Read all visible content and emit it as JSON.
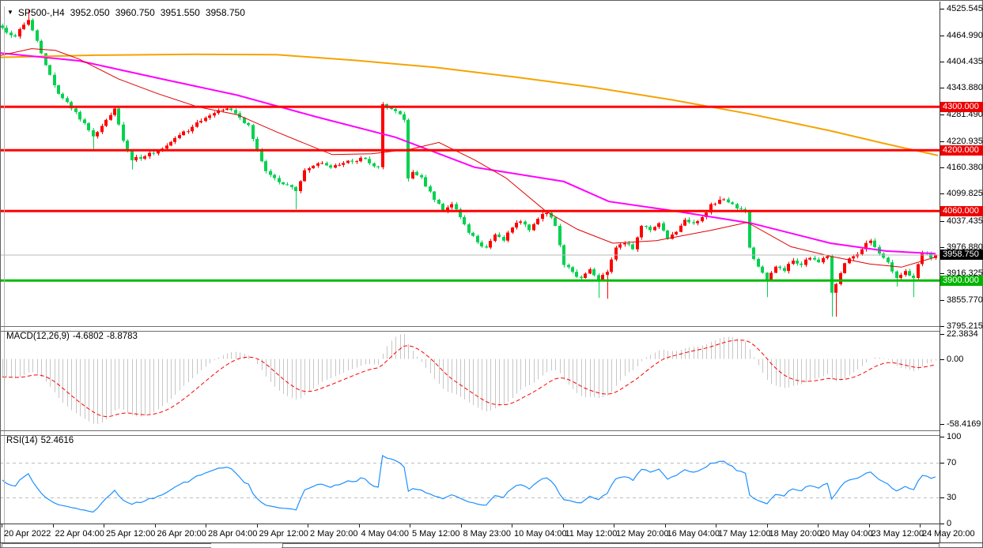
{
  "header": {
    "dropdown_icon": "▼",
    "symbol": "SP500-,H4",
    "open": "3952.050",
    "high": "3960.750",
    "low": "3951.550",
    "close": "3958.750"
  },
  "macd_panel": {
    "label": "MACD(12,26,9)",
    "macd_value": "-4.6802",
    "signal_value": "-8.8783"
  },
  "rsi_panel": {
    "label": "RSI(14)",
    "value": "52.4616"
  },
  "chart_data": {
    "type": "candlestick",
    "symbol": "SP500-",
    "timeframe": "H4",
    "colors": {
      "bull": "#ff0000",
      "bear": "#00d24f",
      "resistance_line": "#ff0000",
      "support_line": "#00bb00",
      "current_price_line": "#b8b8b8",
      "ma_slow": "#f5a300",
      "ma_medium": "#ff00ff",
      "ma_fast": "#e00000",
      "macd_histogram": "#c6c6c6",
      "macd_signal": "#ff0000",
      "rsi_line": "#1e90ff",
      "rsi_levels": "#bdbdbd"
    },
    "price_axis_ticks": [
      {
        "label": "4525.545",
        "value": 4525.545
      },
      {
        "label": "4464.990",
        "value": 4464.99
      },
      {
        "label": "4404.435",
        "value": 4404.435
      },
      {
        "label": "4343.880",
        "value": 4343.88
      },
      {
        "label": "4281.490",
        "value": 4281.49
      },
      {
        "label": "4220.935",
        "value": 4220.935
      },
      {
        "label": "4160.380",
        "value": 4160.38
      },
      {
        "label": "4099.825",
        "value": 4099.825
      },
      {
        "label": "4037.435",
        "value": 4037.435
      },
      {
        "label": "3976.880",
        "value": 3976.88
      },
      {
        "label": "3916.325",
        "value": 3916.325
      },
      {
        "label": "3855.770",
        "value": 3855.77
      },
      {
        "label": "3795.215",
        "value": 3795.215
      }
    ],
    "hlines": [
      {
        "label": "4300.000",
        "price": 4300.0,
        "color": "#ee0000",
        "kind": "resistance"
      },
      {
        "label": "4200.000",
        "price": 4200.0,
        "color": "#ee0000",
        "kind": "resistance"
      },
      {
        "label": "4060.000",
        "price": 4060.0,
        "color": "#ee0000",
        "kind": "resistance"
      },
      {
        "label": "3900.000",
        "price": 3900.0,
        "color": "#00b400",
        "kind": "support"
      }
    ],
    "current_price": {
      "label": "3958.750",
      "value": 3958.75,
      "badge_color": "#000000"
    },
    "time_axis_labels": [
      "20 Apr 2022",
      "22 Apr 04:00",
      "25 Apr 12:00",
      "26 Apr 20:00",
      "28 Apr 04:00",
      "29 Apr 12:00",
      "2 May 20:00",
      "4 May 04:00",
      "5 May 12:00",
      "8 May 23:00",
      "10 May 04:00",
      "11 May 12:00",
      "12 May 20:00",
      "16 May 04:00",
      "17 May 12:00",
      "18 May 20:00",
      "20 May 04:00",
      "23 May 12:00",
      "24 May 20:00"
    ],
    "bars": {
      "count": 217,
      "close_keypoints": [
        [
          0,
          4482
        ],
        [
          3,
          4462
        ],
        [
          6,
          4500
        ],
        [
          8,
          4452
        ],
        [
          10,
          4396
        ],
        [
          13,
          4330
        ],
        [
          17,
          4288
        ],
        [
          21,
          4232
        ],
        [
          24,
          4270
        ],
        [
          26,
          4296
        ],
        [
          28,
          4222
        ],
        [
          30,
          4177
        ],
        [
          33,
          4186
        ],
        [
          36,
          4200
        ],
        [
          40,
          4228
        ],
        [
          44,
          4254
        ],
        [
          48,
          4280
        ],
        [
          52,
          4296
        ],
        [
          55,
          4275
        ],
        [
          57,
          4258
        ],
        [
          59,
          4200
        ],
        [
          61,
          4152
        ],
        [
          63,
          4136
        ],
        [
          66,
          4120
        ],
        [
          68,
          4106
        ],
        [
          70,
          4154
        ],
        [
          73,
          4170
        ],
        [
          76,
          4160
        ],
        [
          80,
          4176
        ],
        [
          84,
          4180
        ],
        [
          86,
          4163
        ],
        [
          87,
          4161
        ],
        [
          88,
          4306
        ],
        [
          90,
          4295
        ],
        [
          92,
          4283
        ],
        [
          93,
          4270
        ],
        [
          94,
          4135
        ],
        [
          95,
          4150
        ],
        [
          97,
          4138
        ],
        [
          100,
          4086
        ],
        [
          102,
          4060
        ],
        [
          104,
          4076
        ],
        [
          106,
          4046
        ],
        [
          108,
          4010
        ],
        [
          110,
          3988
        ],
        [
          112,
          3976
        ],
        [
          114,
          4006
        ],
        [
          116,
          3992
        ],
        [
          118,
          4022
        ],
        [
          120,
          4036
        ],
        [
          122,
          4016
        ],
        [
          124,
          4042
        ],
        [
          126,
          4056
        ],
        [
          128,
          4026
        ],
        [
          130,
          3936
        ],
        [
          132,
          3920
        ],
        [
          134,
          3906
        ],
        [
          136,
          3926
        ],
        [
          138,
          3902
        ],
        [
          140,
          3920
        ],
        [
          142,
          3976
        ],
        [
          144,
          3986
        ],
        [
          146,
          3972
        ],
        [
          148,
          4026
        ],
        [
          150,
          4016
        ],
        [
          152,
          4032
        ],
        [
          154,
          3996
        ],
        [
          156,
          4012
        ],
        [
          158,
          4040
        ],
        [
          160,
          4032
        ],
        [
          162,
          4046
        ],
        [
          164,
          4076
        ],
        [
          166,
          4086
        ],
        [
          168,
          4080
        ],
        [
          170,
          4066
        ],
        [
          172,
          4060
        ],
        [
          173,
          3976
        ],
        [
          175,
          3932
        ],
        [
          177,
          3902
        ],
        [
          179,
          3932
        ],
        [
          181,
          3922
        ],
        [
          183,
          3946
        ],
        [
          185,
          3936
        ],
        [
          187,
          3952
        ],
        [
          189,
          3942
        ],
        [
          191,
          3956
        ],
        [
          192,
          3872
        ],
        [
          193,
          3892
        ],
        [
          195,
          3940
        ],
        [
          197,
          3956
        ],
        [
          199,
          3972
        ],
        [
          201,
          3992
        ],
        [
          203,
          3962
        ],
        [
          205,
          3942
        ],
        [
          207,
          3906
        ],
        [
          209,
          3922
        ],
        [
          211,
          3906
        ],
        [
          213,
          3964
        ],
        [
          215,
          3952
        ],
        [
          216,
          3958.75
        ]
      ],
      "high_overrides": [
        [
          6,
          4525
        ],
        [
          26,
          4302
        ],
        [
          52,
          4302
        ],
        [
          88,
          4311
        ],
        [
          166,
          4094
        ],
        [
          201,
          3996
        ]
      ],
      "low_overrides": [
        [
          21,
          4198
        ],
        [
          30,
          4156
        ],
        [
          68,
          4064
        ],
        [
          94,
          4128
        ],
        [
          130,
          3930
        ],
        [
          138,
          3860
        ],
        [
          140,
          3858
        ],
        [
          177,
          3862
        ],
        [
          192,
          3817
        ],
        [
          193,
          3817
        ],
        [
          207,
          3886
        ],
        [
          211,
          3862
        ]
      ]
    },
    "moving_averages": [
      {
        "name": "slow-ma",
        "color_key": "ma_slow",
        "width": 2,
        "points": [
          [
            0,
            4414
          ],
          [
            120,
            4419
          ],
          [
            250,
            4421
          ],
          [
            350,
            4420
          ],
          [
            450,
            4407
          ],
          [
            550,
            4391
          ],
          [
            650,
            4369
          ],
          [
            750,
            4345
          ],
          [
            850,
            4316
          ],
          [
            950,
            4283
          ],
          [
            1050,
            4245
          ],
          [
            1120,
            4215
          ],
          [
            1186,
            4188
          ]
        ]
      },
      {
        "name": "medium-ma",
        "color_key": "ma_medium",
        "width": 2,
        "points": [
          [
            0,
            4424
          ],
          [
            100,
            4406
          ],
          [
            200,
            4366
          ],
          [
            300,
            4327
          ],
          [
            400,
            4277
          ],
          [
            500,
            4230
          ],
          [
            600,
            4161
          ],
          [
            713,
            4128
          ],
          [
            770,
            4082
          ],
          [
            850,
            4061
          ],
          [
            950,
            4032
          ],
          [
            1050,
            3986
          ],
          [
            1120,
            3968
          ],
          [
            1183,
            3962
          ]
        ]
      },
      {
        "name": "fast-ma",
        "color_key": "ma_fast",
        "width": 1,
        "points": [
          [
            0,
            4418
          ],
          [
            40,
            4434
          ],
          [
            70,
            4430
          ],
          [
            100,
            4410
          ],
          [
            150,
            4364
          ],
          [
            200,
            4330
          ],
          [
            250,
            4300
          ],
          [
            300,
            4282
          ],
          [
            350,
            4242
          ],
          [
            420,
            4190
          ],
          [
            470,
            4192
          ],
          [
            520,
            4203
          ],
          [
            555,
            4218
          ],
          [
            600,
            4178
          ],
          [
            640,
            4136
          ],
          [
            690,
            4060
          ],
          [
            730,
            4018
          ],
          [
            775,
            3986
          ],
          [
            830,
            3992
          ],
          [
            900,
            4016
          ],
          [
            945,
            4034
          ],
          [
            1000,
            3978
          ],
          [
            1050,
            3956
          ],
          [
            1100,
            3938
          ],
          [
            1140,
            3931
          ],
          [
            1183,
            3954
          ]
        ]
      }
    ],
    "macd": {
      "label": "MACD(12,26,9)",
      "macd_value": -4.6802,
      "signal_value": -8.8783,
      "params": {
        "fast": 12,
        "slow": 26,
        "signal": 9
      },
      "axis_ticks": [
        {
          "label": "22.3834",
          "value": 22.3834
        },
        {
          "label": "0.00",
          "value": 0
        },
        {
          "label": "-58.4169",
          "value": -58.4169
        }
      ]
    },
    "rsi": {
      "label": "RSI(14)",
      "period": 14,
      "value": 52.4616,
      "levels": [
        70,
        30
      ],
      "axis_ticks": [
        {
          "label": "100",
          "value": 100
        },
        {
          "label": "70",
          "value": 70
        },
        {
          "label": "30",
          "value": 30
        },
        {
          "label": "0",
          "value": 0
        }
      ]
    }
  }
}
